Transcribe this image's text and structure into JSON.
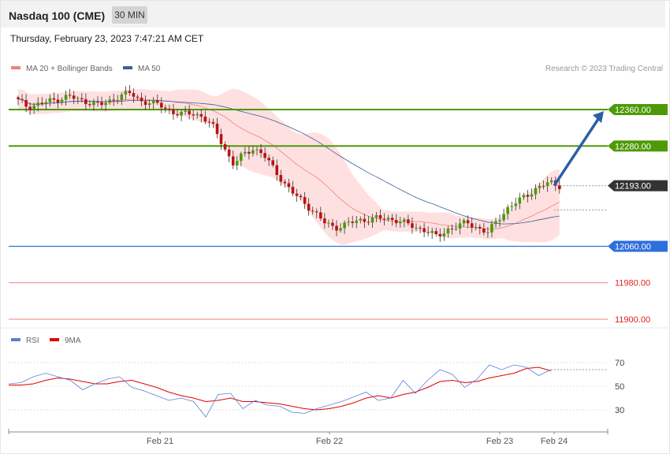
{
  "header": {
    "title": "Nasdaq 100 (CME)",
    "timeframe": "30 MIN",
    "datetime": "Thursday, February 23, 2023 7:47:21 AM CET"
  },
  "chart_data": [
    {
      "type": "candlestick",
      "title": "Nasdaq 100 (CME)",
      "legend": [
        {
          "name": "MA 20 + Bollinger Bands",
          "color": "#f08080"
        },
        {
          "name": "MA 50",
          "color": "#3a5f9e"
        }
      ],
      "legend_placement": "top-left",
      "copyright": "Research © 2023 Trading Central",
      "ylim": [
        11880,
        12420
      ],
      "x_tick_labels": [
        "Feb 21",
        "Feb 22",
        "Feb 23",
        "Feb 24"
      ],
      "levels": [
        {
          "label": "12360.00",
          "value": 12360,
          "color": "#4d9a06",
          "kind": "resistance"
        },
        {
          "label": "12280.00",
          "value": 12280,
          "color": "#4d9a06",
          "kind": "resistance"
        },
        {
          "label": "12193.00",
          "value": 12193,
          "color": "#333333",
          "kind": "last"
        },
        {
          "label": "12060.00",
          "value": 12060,
          "color": "#2f6fdc",
          "kind": "support"
        },
        {
          "label": "11980.00",
          "value": 11980,
          "color": "#e02020",
          "kind": "support"
        },
        {
          "label": "11900.00",
          "value": 11900,
          "color": "#e02020",
          "kind": "support"
        }
      ],
      "forecast": {
        "from": 12193,
        "to": 12360,
        "direction": "up",
        "color": "#2a5fa5"
      },
      "anchor_closes": [
        12380,
        12365,
        12372,
        12378,
        12383,
        12390,
        12380,
        12376,
        12370,
        12378,
        12392,
        12396,
        12378,
        12376,
        12368,
        12355,
        12350,
        12352,
        12345,
        12325,
        12285,
        12240,
        12260,
        12275,
        12262,
        12230,
        12200,
        12175,
        12155,
        12135,
        12112,
        12100,
        12108,
        12115,
        12118,
        12122,
        12120,
        12118,
        12110,
        12100,
        12095,
        12080,
        12096,
        12105,
        12112,
        12100,
        12090,
        12120,
        12145,
        12160,
        12176,
        12190,
        12200,
        12193
      ]
    },
    {
      "type": "line",
      "legend": [
        {
          "name": "RSI",
          "color": "#5b7fd6"
        },
        {
          "name": "9MA",
          "color": "#e00000"
        }
      ],
      "y_tick_labels": [
        "70",
        "50",
        "30"
      ],
      "ylim": [
        10,
        80
      ],
      "rsi": [
        52,
        53,
        58,
        61,
        58,
        55,
        47,
        52,
        56,
        58,
        49,
        46,
        42,
        38,
        40,
        37,
        24,
        43,
        44,
        31,
        38,
        34,
        33,
        28,
        27,
        31,
        34,
        37,
        41,
        45,
        38,
        40,
        55,
        44,
        55,
        64,
        60,
        49,
        56,
        68,
        64,
        68,
        66,
        59,
        64
      ],
      "ma9": [
        51,
        51,
        52,
        55,
        57,
        56,
        54,
        52,
        52,
        54,
        55,
        52,
        49,
        45,
        42,
        40,
        37,
        38,
        40,
        37,
        37,
        36,
        35,
        33,
        31,
        30,
        31,
        33,
        36,
        40,
        42,
        40,
        43,
        45,
        49,
        54,
        55,
        53,
        54,
        57,
        59,
        61,
        65,
        66,
        63
      ]
    }
  ]
}
